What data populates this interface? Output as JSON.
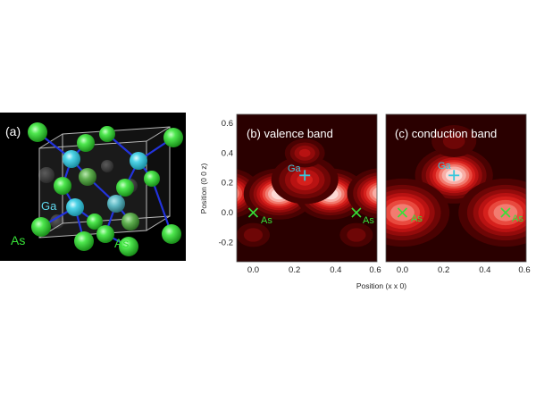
{
  "panel_a": {
    "label": "(a)",
    "atom_labels": {
      "ga": "Ga",
      "as_left": "As",
      "as_right": "As"
    },
    "colors": {
      "background": "#000000",
      "as_atom": "#2ed62e",
      "ga_atom": "#36c7dc",
      "bond": "#2233dd",
      "label_as": "#37e037",
      "label_ga": "#5fd8ee"
    }
  },
  "panel_b": {
    "label": "(b) valence band",
    "ga_label": "Ga",
    "as_label_1": "As",
    "as_label_2": "As"
  },
  "panel_c": {
    "label": "(c) conduction band",
    "ga_label": "Ga",
    "as_label_1": "As",
    "as_label_2": "As"
  },
  "axes": {
    "xlabel": "Position (x x 0)",
    "ylabel": "Position (0 0 z)",
    "x_ticks": [
      "0.0",
      "0.2",
      "0.4",
      "0.6"
    ],
    "y_ticks": [
      "0.6",
      "0.4",
      "0.2",
      "0.0",
      "-0.2"
    ],
    "xlim": [
      -0.08,
      0.6
    ],
    "ylim": [
      -0.33,
      0.66
    ]
  },
  "chart_data": {
    "type": "heatmap",
    "xlim": [
      -0.08,
      0.6
    ],
    "ylim": [
      -0.33,
      0.66
    ],
    "colors": {
      "low": "#2a0000",
      "mid": "#e11a1a",
      "high": "#ffffff",
      "ga_marker": "#36c7dc",
      "as_marker": "#37e037"
    },
    "panels": [
      {
        "name": "(b) valence band",
        "ga_site": [
          0.25,
          0.25
        ],
        "as_sites": [
          [
            0.0,
            0.0
          ],
          [
            0.5,
            0.0
          ]
        ],
        "maxima": [
          {
            "x": -0.13,
            "y": 0.13,
            "amp": 0.95,
            "sigma": 0.05
          },
          {
            "x": 0.125,
            "y": 0.125,
            "amp": 1.0,
            "sigma": 0.05
          },
          {
            "x": 0.375,
            "y": 0.125,
            "amp": 1.0,
            "sigma": 0.05
          },
          {
            "x": 0.625,
            "y": 0.13,
            "amp": 0.95,
            "sigma": 0.05
          },
          {
            "x": 0.25,
            "y": 0.22,
            "amp": 0.55,
            "sigma": 0.055
          },
          {
            "x": 0.25,
            "y": 0.4,
            "amp": 0.45,
            "sigma": 0.035
          },
          {
            "x": 0.0,
            "y": -0.15,
            "amp": 0.28,
            "sigma": 0.035
          },
          {
            "x": 0.5,
            "y": -0.15,
            "amp": 0.28,
            "sigma": 0.035
          }
        ]
      },
      {
        "name": "(c) conduction band",
        "ga_site": [
          0.25,
          0.25
        ],
        "as_sites": [
          [
            0.0,
            0.0
          ],
          [
            0.5,
            0.0
          ]
        ],
        "maxima": [
          {
            "x": 0.25,
            "y": 0.25,
            "amp": 1.0,
            "sigma": 0.055
          },
          {
            "x": 0.0,
            "y": 0.0,
            "amp": 0.8,
            "sigma": 0.07
          },
          {
            "x": 0.5,
            "y": 0.0,
            "amp": 0.8,
            "sigma": 0.07
          },
          {
            "x": 0.25,
            "y": 0.48,
            "amp": 0.25,
            "sigma": 0.05
          }
        ]
      }
    ]
  }
}
